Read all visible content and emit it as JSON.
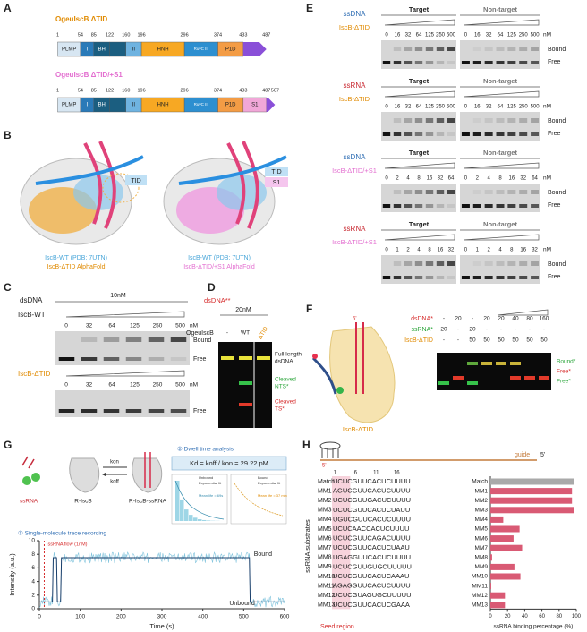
{
  "A": {
    "label": "A",
    "constructs": [
      {
        "name": "OgeuIscB ΔTID",
        "color": "#e08a00",
        "positions": [
          1,
          54,
          85,
          122,
          160,
          196,
          296,
          374,
          433,
          487
        ],
        "domains": [
          "PLMP",
          "I",
          "BH",
          "II",
          "HNH",
          "RuvC III",
          "P1D"
        ]
      },
      {
        "name": "OgeuIscB ΔTID/+S1",
        "color": "#e36fd0",
        "positions": [
          1,
          54,
          85,
          122,
          160,
          196,
          296,
          374,
          433,
          487,
          507
        ],
        "domains": [
          "PLMP",
          "I",
          "BH",
          "II",
          "HNH",
          "RuvC III",
          "P1D",
          "S1"
        ]
      }
    ]
  },
  "B": {
    "label": "B",
    "left": {
      "tags": [
        "TID"
      ],
      "captions": [
        "IscB-WT (PDB: 7UTN)",
        "IscB-ΔTID AlphaFold"
      ]
    },
    "right": {
      "tags": [
        "TID",
        "S1"
      ],
      "captions": [
        "IscB-WT (PDB: 7UTN)",
        "IscB-ΔTID/+S1 AlphaFold"
      ]
    }
  },
  "C": {
    "label": "C",
    "substrate": "dsDNA",
    "concentration": "10nM",
    "gels": [
      {
        "protein": "IscB-WT",
        "lanes": [
          0,
          32,
          64,
          125,
          250,
          500
        ],
        "unit": "nM",
        "bands": [
          "Bound",
          "Free"
        ]
      },
      {
        "protein": "IscB-ΔTID",
        "lanes": [
          0,
          32,
          64,
          125,
          250,
          500
        ],
        "unit": "nM",
        "bands": [
          "Free"
        ]
      }
    ]
  },
  "D": {
    "label": "D",
    "substrate": "dsDNA**",
    "concentration": "20nM",
    "protein": "OgeuIscB",
    "lanes": [
      "-",
      "WT",
      "ΔTID"
    ],
    "bands": [
      [
        "Full length",
        "dsDNA"
      ],
      [
        "Cleaved",
        "NTS*"
      ],
      [
        "Cleaved",
        "TS*"
      ]
    ]
  },
  "E": {
    "label": "E",
    "blocks": [
      {
        "substrate": "ssDNA",
        "protein": "IscB-ΔTID",
        "groups": [
          "Target",
          "Non-target"
        ],
        "lanes": [
          0,
          16,
          32,
          64,
          125,
          250,
          500
        ],
        "unit": "nM",
        "bands": [
          "Bound",
          "Free"
        ]
      },
      {
        "substrate": "ssRNA",
        "protein": "IscB-ΔTID",
        "groups": [
          "Target",
          "Non-target"
        ],
        "lanes": [
          0,
          16,
          32,
          64,
          125,
          250,
          500
        ],
        "unit": "nM",
        "bands": [
          "Bound",
          "Free"
        ]
      },
      {
        "substrate": "ssDNA",
        "protein": "IscB-ΔTID/+S1",
        "groups": [
          "Target",
          "Non-target"
        ],
        "lanes": [
          0,
          2,
          4,
          8,
          16,
          32,
          64
        ],
        "unit": "nM",
        "bands": [
          "Bound",
          "Free"
        ]
      },
      {
        "substrate": "ssRNA",
        "protein": "IscB-ΔTID/+S1",
        "groups": [
          "Target",
          "Non-target"
        ],
        "lanes": [
          0,
          1,
          2,
          4,
          8,
          16,
          32
        ],
        "unit": "nM",
        "bands": [
          "Bound",
          "Free"
        ]
      }
    ]
  },
  "F": {
    "label": "F",
    "end": "5'",
    "protein": "IscB-ΔTID",
    "rows": [
      {
        "name": "dsDNA*",
        "values": [
          "-",
          20,
          "-",
          20,
          20,
          40,
          80,
          160
        ]
      },
      {
        "name": "ssRNA*",
        "values": [
          20,
          "-",
          20,
          "-",
          "-",
          "-",
          "-",
          "-"
        ]
      },
      {
        "name": "IscB-ΔTID",
        "values": [
          "-",
          "-",
          50,
          50,
          50,
          50,
          50,
          50
        ]
      }
    ],
    "bands": [
      "Bound*",
      "Free*",
      "Free*"
    ]
  },
  "G": {
    "label": "G",
    "species": [
      "ssRNA",
      "R-IscB",
      "R-IscB-ssRNA"
    ],
    "kon": "kon",
    "koff": "koff",
    "step2": "② Dwell time analysis",
    "kd": "Kd = koff / kon = 29.22 pM",
    "inset_left": [
      "Unbound",
      "Exponential fit",
      "Mean life = 69s"
    ],
    "inset_right": [
      "Bound",
      "Exponential fit",
      "Mean life = 37 min"
    ],
    "step1": "① Single-molecule trace recording",
    "flow": "ssRNA flow (1nM)",
    "states": [
      "Bound",
      "Unbound"
    ],
    "ylabel": "Intensity (a.u.)",
    "xlabel": "Time (s)",
    "xticks": [
      0,
      100,
      200,
      300,
      400,
      500,
      600
    ],
    "yticks": [
      0,
      2,
      4,
      6,
      8,
      10
    ]
  },
  "H": {
    "label": "H",
    "guide": "guide",
    "five_prime": "5'",
    "positions": [
      1,
      6,
      11,
      16
    ],
    "substrates_label": "ssRNA substrates",
    "seed": "Seed region",
    "sequences": [
      "UCUCGUUCACUCUUUU",
      "AGUCGUUCACUCUUUU",
      "UCUCGUUGACUCUUUU",
      "UCUCGUUCACUCUAUU",
      "UGUCGUUCACUCUUUU",
      "UCUCAACCACUCUUUU",
      "UCUCGUUCAGACUUUU",
      "UCUCGUUCACUCUAAU",
      "UGAGGUUCACUCUUUU",
      "UCUCGUUGUGCUUUUU",
      "UCUCGUUCACUCAAAU",
      "AGAGGUUCACUCUUUU",
      "UCUCGUAGUGCUUUUU",
      "UCUCGUUCACUCGAAA"
    ],
    "chart": {
      "type": "bar",
      "categories": [
        "Match",
        "MM1",
        "MM2",
        "MM3",
        "MM4",
        "MM5",
        "MM6",
        "MM7",
        "MM8",
        "MM9",
        "MM10",
        "MM11",
        "MM12",
        "MM13"
      ],
      "values": [
        97,
        95,
        95,
        97,
        15,
        34,
        27,
        37,
        2,
        28,
        35,
        1,
        17,
        17
      ],
      "xlim": [
        0,
        100
      ],
      "xticks": [
        0,
        20,
        40,
        60,
        80,
        100
      ],
      "xlabel": "ssRNA binding percentage (%)",
      "colors": [
        "#a9a9a9",
        "#d95a74",
        "#d95a74",
        "#d95a74",
        "#d95a74",
        "#d95a74",
        "#d95a74",
        "#d95a74",
        "#d95a74",
        "#d95a74",
        "#d95a74",
        "#d95a74",
        "#d95a74",
        "#d95a74"
      ]
    }
  }
}
